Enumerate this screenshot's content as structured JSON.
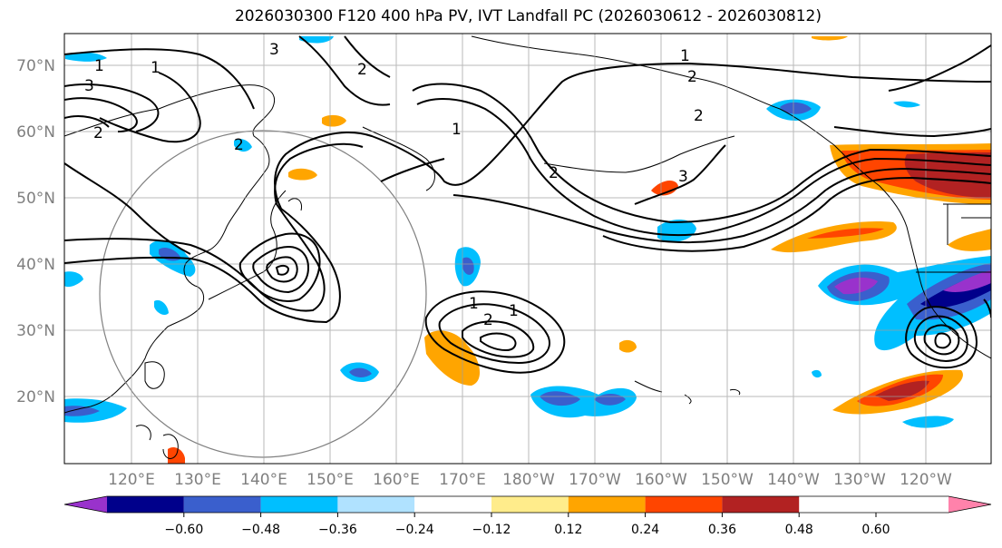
{
  "title": "2026030300 F120 400 hPa PV, IVT Landfall PC (2026030612 - 2026030812)",
  "lat_labels": [
    "70°N",
    "60°N",
    "50°N",
    "40°N",
    "30°N",
    "20°N"
  ],
  "lon_labels": [
    "120°E",
    "130°E",
    "140°E",
    "150°E",
    "160°E",
    "170°E",
    "180°W",
    "170°W",
    "160°W",
    "150°W",
    "140°W",
    "130°W",
    "120°W"
  ],
  "contour_labels": [
    "1",
    "1",
    "2",
    "2",
    "3",
    "3",
    "2",
    "1",
    "2",
    "1",
    "1",
    "2",
    "3",
    "1",
    "2",
    "2"
  ],
  "colorbar": {
    "colors": [
      "#9932cc",
      "#00008b",
      "#3a5fcd",
      "#00bfff",
      "#b0e2ff",
      "#ffffff",
      "#ffec8b",
      "#ffa500",
      "#ff4500",
      "#b22222",
      "#ff82ab"
    ],
    "tick_labels": [
      "−0.60",
      "−0.48",
      "−0.36",
      "−0.24",
      "−0.12",
      "0.12",
      "0.24",
      "0.36",
      "0.48",
      "0.60"
    ],
    "extend": "both"
  }
}
